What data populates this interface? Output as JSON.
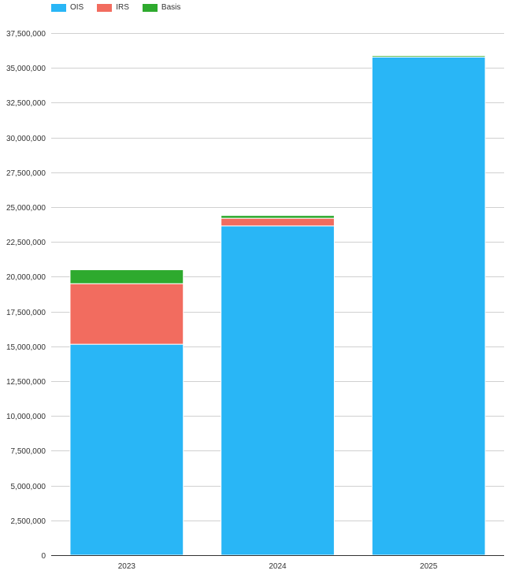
{
  "chart_data": {
    "type": "bar",
    "stacked": true,
    "title": "",
    "xlabel": "",
    "ylabel": "",
    "categories": [
      "2023",
      "2024",
      "2025"
    ],
    "series": [
      {
        "name": "OIS",
        "color": "#29b6f6",
        "values": [
          15150000,
          23650000,
          35780000
        ]
      },
      {
        "name": "IRS",
        "color": "#f26c5f",
        "values": [
          4350000,
          550000,
          0
        ]
      },
      {
        "name": "Basis",
        "color": "#2eaa2e",
        "values": [
          1000000,
          200000,
          100000
        ]
      }
    ],
    "ylim": [
      0,
      37500000
    ],
    "yticks": [
      0,
      2500000,
      5000000,
      7500000,
      10000000,
      12500000,
      15000000,
      17500000,
      20000000,
      22500000,
      25000000,
      27500000,
      30000000,
      32500000,
      35000000,
      37500000
    ],
    "ytick_labels": [
      "0",
      "2,500,000",
      "5,000,000",
      "7,500,000",
      "10,000,000",
      "12,500,000",
      "15,000,000",
      "17,500,000",
      "20,000,000",
      "22,500,000",
      "25,000,000",
      "27,500,000",
      "30,000,000",
      "32,500,000",
      "35,000,000",
      "37,500,000"
    ],
    "grid": true,
    "legend_position": "top-left"
  }
}
